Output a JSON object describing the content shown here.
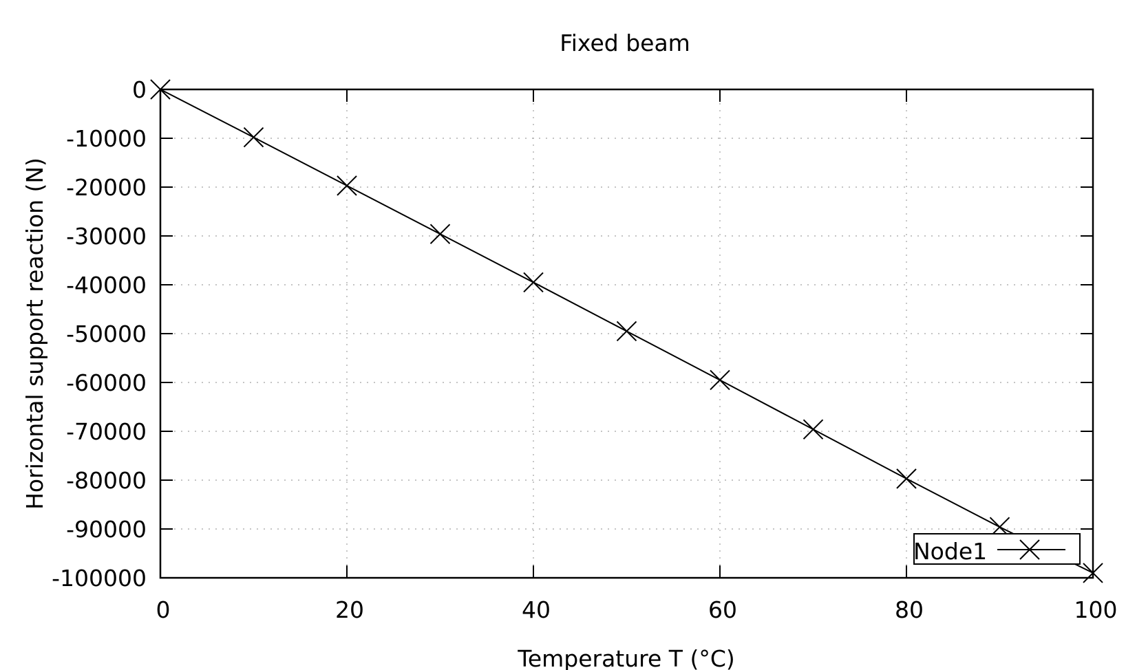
{
  "chart_data": {
    "type": "line",
    "title": "Fixed beam",
    "xlabel": "Temperature T (°C)",
    "ylabel": "Horizontal support reaction (N)",
    "xlim": [
      0,
      100
    ],
    "ylim": [
      -100000,
      0
    ],
    "xticks": [
      "0",
      "20",
      "40",
      "60",
      "80",
      "100"
    ],
    "xtick_values": [
      0,
      20,
      40,
      60,
      80,
      100
    ],
    "yticks": [
      "0",
      "-10000",
      "-20000",
      "-30000",
      "-40000",
      "-50000",
      "-60000",
      "-70000",
      "-80000",
      "-90000",
      "-100000"
    ],
    "ytick_values": [
      0,
      -10000,
      -20000,
      -30000,
      -40000,
      -50000,
      -60000,
      -70000,
      -80000,
      -90000,
      -100000
    ],
    "grid": true,
    "legend_position": "bottom-right",
    "series": [
      {
        "name": "Node1",
        "marker": "x",
        "color": "#000000",
        "x": [
          0,
          10,
          20,
          30,
          40,
          50,
          60,
          70,
          80,
          90,
          100
        ],
        "y": [
          0,
          -9800,
          -19700,
          -29600,
          -39500,
          -49500,
          -59500,
          -69600,
          -79700,
          -89600,
          -99000
        ]
      }
    ]
  }
}
